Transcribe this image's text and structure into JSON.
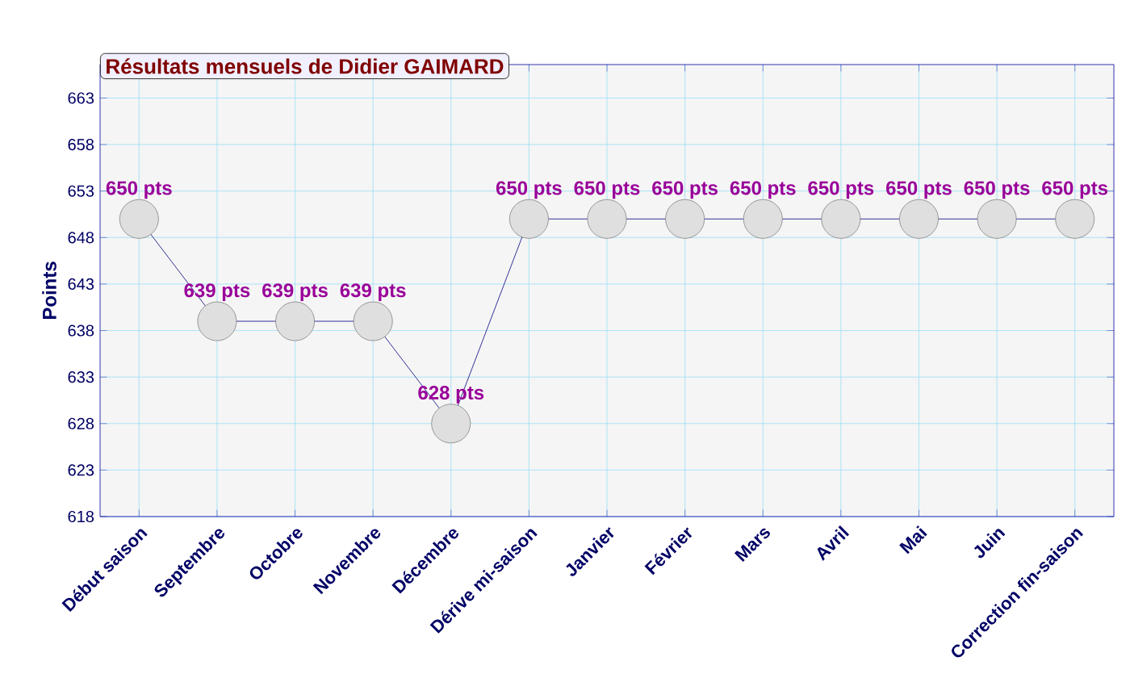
{
  "chart_data": {
    "type": "line",
    "title": "Résultats mensuels de Didier GAIMARD",
    "ylabel": "Points",
    "categories": [
      "Début saison",
      "Septembre",
      "Octobre",
      "Novembre",
      "Décembre",
      "Dérive mi-saison",
      "Janvier",
      "Février",
      "Mars",
      "Avril",
      "Mai",
      "Juin",
      "Correction fin-saison"
    ],
    "series": [
      {
        "color": "#000080",
        "values": [
          650,
          639,
          639,
          639,
          628,
          650,
          650,
          650,
          650,
          650,
          650,
          650,
          650
        ],
        "value_labels": [
          "650 pts",
          "639 pts",
          "639 pts",
          "639 pts",
          "628 pts",
          "650 pts",
          "650 pts",
          "650 pts",
          "650 pts",
          "650 pts",
          "650 pts",
          "650 pts",
          "650 pts"
        ]
      }
    ],
    "ylim": [
      618,
      666.6
    ],
    "yticks": [
      618,
      623,
      628,
      633,
      638,
      643,
      648,
      653,
      658,
      663
    ],
    "grid": true,
    "marker": "circle",
    "line_style": "solid"
  }
}
